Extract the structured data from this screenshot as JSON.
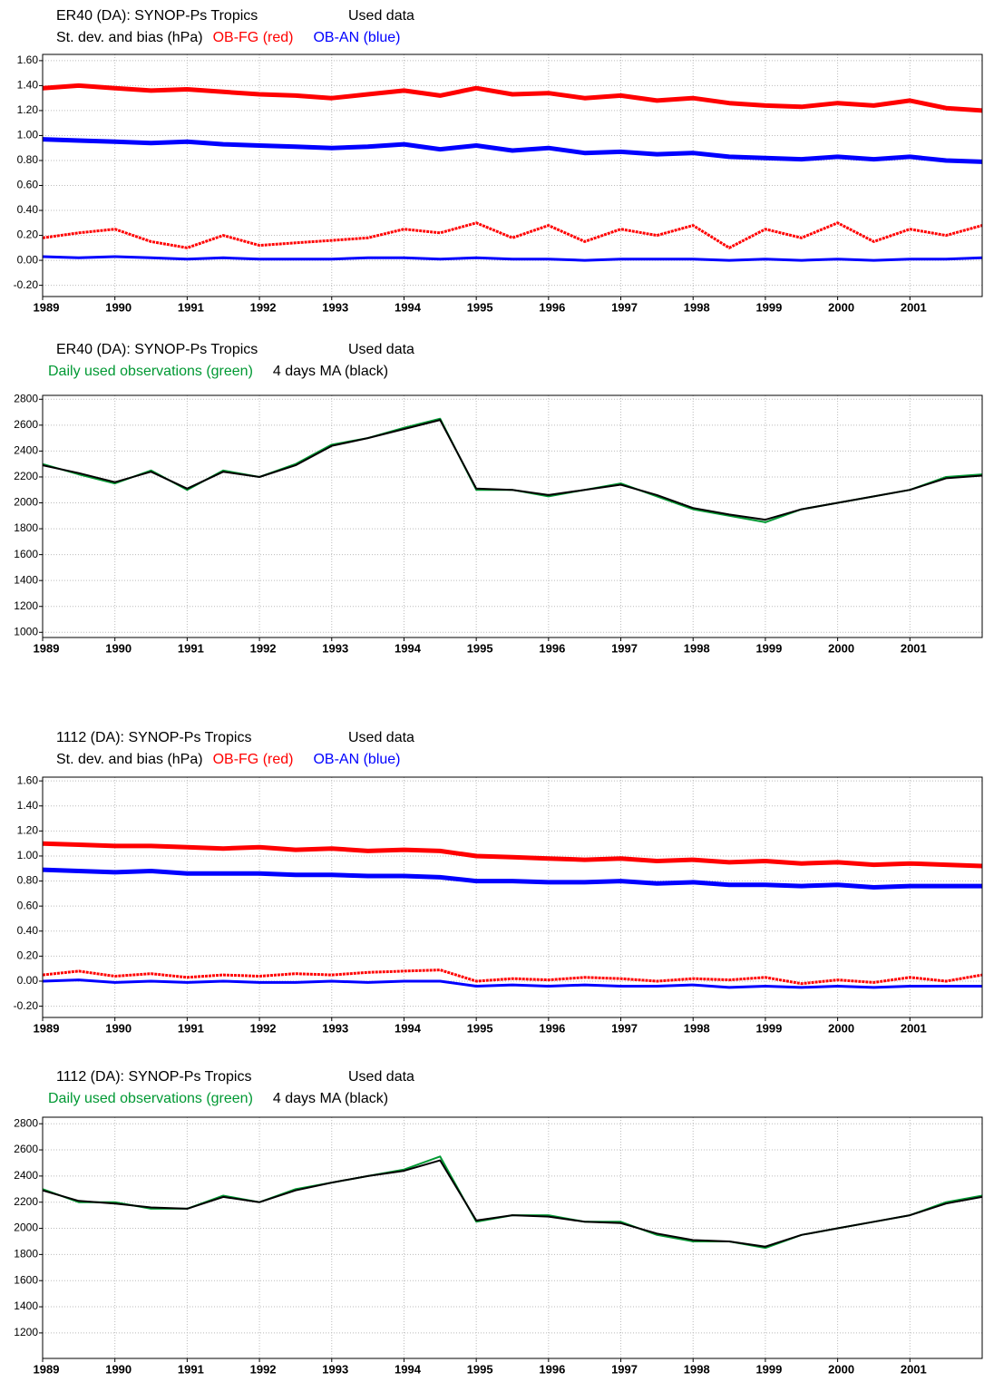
{
  "chart_data": [
    {
      "type": "line",
      "title": "ER40 (DA): SYNOP-Ps  Tropics",
      "status": "Used data",
      "ylabel": "St. dev. and bias (hPa)",
      "x": [
        1989,
        1989.5,
        1990,
        1990.5,
        1991,
        1991.5,
        1992,
        1992.5,
        1993,
        1993.5,
        1994,
        1994.5,
        1995,
        1995.5,
        1996,
        1996.5,
        1997,
        1997.5,
        1998,
        1998.5,
        1999,
        1999.5,
        2000,
        2000.5,
        2001,
        2001.5,
        2002
      ],
      "xlim": [
        1989,
        2002
      ],
      "xticks": [
        1989,
        1990,
        1991,
        1992,
        1993,
        1994,
        1995,
        1996,
        1997,
        1998,
        1999,
        2000,
        2001
      ],
      "ylim": [
        -0.29,
        1.65
      ],
      "yticks": [
        {
          "value": -0.2,
          "label": "-0.20"
        },
        {
          "value": 0,
          "label": "0.00"
        },
        {
          "value": 0.2,
          "label": "0.20"
        },
        {
          "value": 0.4,
          "label": "0.40"
        },
        {
          "value": 0.6,
          "label": "0.60"
        },
        {
          "value": 0.8,
          "label": "0.80"
        },
        {
          "value": 1,
          "label": "1.00"
        },
        {
          "value": 1.2,
          "label": "1.20"
        },
        {
          "value": 1.4,
          "label": "1.40"
        },
        {
          "value": 1.6,
          "label": "1.60"
        }
      ],
      "grid": true,
      "series": [
        {
          "name": "OB-FG (red)",
          "color": "#ff0000",
          "values": [
            1.38,
            1.4,
            1.38,
            1.36,
            1.37,
            1.35,
            1.33,
            1.32,
            1.3,
            1.33,
            1.36,
            1.32,
            1.38,
            1.33,
            1.34,
            1.3,
            1.32,
            1.28,
            1.3,
            1.26,
            1.24,
            1.23,
            1.26,
            1.24,
            1.28,
            1.22,
            1.2
          ],
          "bias": [
            0.18,
            0.22,
            0.25,
            0.15,
            0.1,
            0.2,
            0.12,
            0.14,
            0.16,
            0.18,
            0.25,
            0.22,
            0.3,
            0.18,
            0.28,
            0.15,
            0.25,
            0.2,
            0.28,
            0.1,
            0.25,
            0.18,
            0.3,
            0.15,
            0.25,
            0.2,
            0.28
          ]
        },
        {
          "name": "OB-AN (blue)",
          "color": "#0000ff",
          "values": [
            0.97,
            0.96,
            0.95,
            0.94,
            0.95,
            0.93,
            0.92,
            0.91,
            0.9,
            0.91,
            0.93,
            0.89,
            0.92,
            0.88,
            0.9,
            0.86,
            0.87,
            0.85,
            0.86,
            0.83,
            0.82,
            0.81,
            0.83,
            0.81,
            0.83,
            0.8,
            0.79
          ],
          "bias": [
            0.03,
            0.02,
            0.03,
            0.02,
            0.01,
            0.02,
            0.01,
            0.01,
            0.01,
            0.02,
            0.02,
            0.01,
            0.02,
            0.01,
            0.01,
            0.0,
            0.01,
            0.01,
            0.01,
            0.0,
            0.01,
            0.0,
            0.01,
            0.0,
            0.01,
            0.01,
            0.02
          ]
        }
      ]
    },
    {
      "type": "line",
      "title": "ER40 (DA): SYNOP-Ps  Tropics",
      "status": "Used data",
      "x": [
        1989,
        1989.5,
        1990,
        1990.5,
        1991,
        1991.5,
        1992,
        1992.5,
        1993,
        1993.5,
        1994,
        1994.5,
        1995,
        1995.5,
        1996,
        1996.5,
        1997,
        1997.5,
        1998,
        1998.5,
        1999,
        1999.5,
        2000,
        2000.5,
        2001,
        2001.5,
        2002
      ],
      "xlim": [
        1989,
        2002
      ],
      "xticks": [
        1989,
        1990,
        1991,
        1992,
        1993,
        1994,
        1995,
        1996,
        1997,
        1998,
        1999,
        2000,
        2001
      ],
      "ylim": [
        960,
        2830
      ],
      "yticks": [
        1000,
        1200,
        1400,
        1600,
        1800,
        2000,
        2200,
        2400,
        2600,
        2800
      ],
      "grid": true,
      "series": [
        {
          "name": "Daily used observations (green)",
          "color": "#009933",
          "values": [
            2300,
            2220,
            2150,
            2250,
            2100,
            2250,
            2200,
            2300,
            2450,
            2500,
            2580,
            2650,
            2100,
            2100,
            2050,
            2100,
            2150,
            2050,
            1950,
            1900,
            1850,
            1950,
            2000,
            2050,
            2100,
            2200,
            2220
          ]
        },
        {
          "name": "4 days MA (black)",
          "color": "#000000",
          "values": [
            2290,
            2230,
            2160,
            2240,
            2110,
            2240,
            2200,
            2290,
            2440,
            2500,
            2570,
            2640,
            2110,
            2100,
            2060,
            2100,
            2140,
            2060,
            1960,
            1910,
            1870,
            1950,
            2000,
            2050,
            2100,
            2190,
            2210
          ]
        }
      ]
    },
    {
      "type": "line",
      "title": "1112 (DA): SYNOP-Ps  Tropics",
      "status": "Used data",
      "ylabel": "St. dev. and bias (hPa)",
      "x": [
        1989,
        1989.5,
        1990,
        1990.5,
        1991,
        1991.5,
        1992,
        1992.5,
        1993,
        1993.5,
        1994,
        1994.5,
        1995,
        1995.5,
        1996,
        1996.5,
        1997,
        1997.5,
        1998,
        1998.5,
        1999,
        1999.5,
        2000,
        2000.5,
        2001,
        2001.5,
        2002
      ],
      "xlim": [
        1989,
        2002
      ],
      "xticks": [
        1989,
        1990,
        1991,
        1992,
        1993,
        1994,
        1995,
        1996,
        1997,
        1998,
        1999,
        2000,
        2001
      ],
      "ylim": [
        -0.29,
        1.63
      ],
      "yticks": [
        {
          "value": -0.2,
          "label": "-0.20"
        },
        {
          "value": 0,
          "label": "0.00"
        },
        {
          "value": 0.2,
          "label": "0.20"
        },
        {
          "value": 0.4,
          "label": "0.40"
        },
        {
          "value": 0.6,
          "label": "0.60"
        },
        {
          "value": 0.8,
          "label": "0.80"
        },
        {
          "value": 1,
          "label": "1.00"
        },
        {
          "value": 1.2,
          "label": "1.20"
        },
        {
          "value": 1.4,
          "label": "1.40"
        },
        {
          "value": 1.6,
          "label": "1.60"
        }
      ],
      "grid": true,
      "series": [
        {
          "name": "OB-FG (red)",
          "color": "#ff0000",
          "values": [
            1.1,
            1.09,
            1.08,
            1.08,
            1.07,
            1.06,
            1.07,
            1.05,
            1.06,
            1.04,
            1.05,
            1.04,
            1.0,
            0.99,
            0.98,
            0.97,
            0.98,
            0.96,
            0.97,
            0.95,
            0.96,
            0.94,
            0.95,
            0.93,
            0.94,
            0.93,
            0.92
          ],
          "bias": [
            0.05,
            0.08,
            0.04,
            0.06,
            0.03,
            0.05,
            0.04,
            0.06,
            0.05,
            0.07,
            0.08,
            0.09,
            0.0,
            0.02,
            0.01,
            0.03,
            0.02,
            0.0,
            0.02,
            0.01,
            0.03,
            -0.02,
            0.01,
            -0.01,
            0.03,
            0.0,
            0.05
          ]
        },
        {
          "name": "OB-AN (blue)",
          "color": "#0000ff",
          "values": [
            0.89,
            0.88,
            0.87,
            0.88,
            0.86,
            0.86,
            0.86,
            0.85,
            0.85,
            0.84,
            0.84,
            0.83,
            0.8,
            0.8,
            0.79,
            0.79,
            0.8,
            0.78,
            0.79,
            0.77,
            0.77,
            0.76,
            0.77,
            0.75,
            0.76,
            0.76,
            0.76
          ],
          "bias": [
            0.0,
            0.01,
            -0.01,
            0.0,
            -0.01,
            0.0,
            -0.01,
            -0.01,
            0.0,
            -0.01,
            0.0,
            0.0,
            -0.04,
            -0.03,
            -0.04,
            -0.03,
            -0.04,
            -0.04,
            -0.03,
            -0.05,
            -0.04,
            -0.05,
            -0.04,
            -0.05,
            -0.04,
            -0.04,
            -0.04
          ]
        }
      ]
    },
    {
      "type": "line",
      "title": "1112 (DA): SYNOP-Ps  Tropics",
      "status": "Used data",
      "x": [
        1989,
        1989.5,
        1990,
        1990.5,
        1991,
        1991.5,
        1992,
        1992.5,
        1993,
        1993.5,
        1994,
        1994.5,
        1995,
        1995.5,
        1996,
        1996.5,
        1997,
        1997.5,
        1998,
        1998.5,
        1999,
        1999.5,
        2000,
        2000.5,
        2001,
        2001.5,
        2002
      ],
      "xlim": [
        1989,
        2002
      ],
      "xticks": [
        1989,
        1990,
        1991,
        1992,
        1993,
        1994,
        1995,
        1996,
        1997,
        1998,
        1999,
        2000,
        2001
      ],
      "ylim": [
        1005,
        2850
      ],
      "yticks": [
        1200,
        1400,
        1600,
        1800,
        2000,
        2200,
        2400,
        2600,
        2800
      ],
      "grid": true,
      "series": [
        {
          "name": "Daily used observations (green)",
          "color": "#009933",
          "values": [
            2300,
            2200,
            2200,
            2150,
            2150,
            2250,
            2200,
            2300,
            2350,
            2400,
            2450,
            2550,
            2050,
            2100,
            2100,
            2050,
            2050,
            1950,
            1900,
            1900,
            1850,
            1950,
            2000,
            2050,
            2100,
            2200,
            2250
          ]
        },
        {
          "name": "4 days MA (black)",
          "color": "#000000",
          "values": [
            2290,
            2210,
            2190,
            2160,
            2150,
            2240,
            2200,
            2290,
            2350,
            2400,
            2440,
            2520,
            2060,
            2100,
            2090,
            2050,
            2040,
            1960,
            1910,
            1900,
            1860,
            1950,
            2000,
            2050,
            2100,
            2190,
            2240
          ]
        }
      ]
    }
  ]
}
